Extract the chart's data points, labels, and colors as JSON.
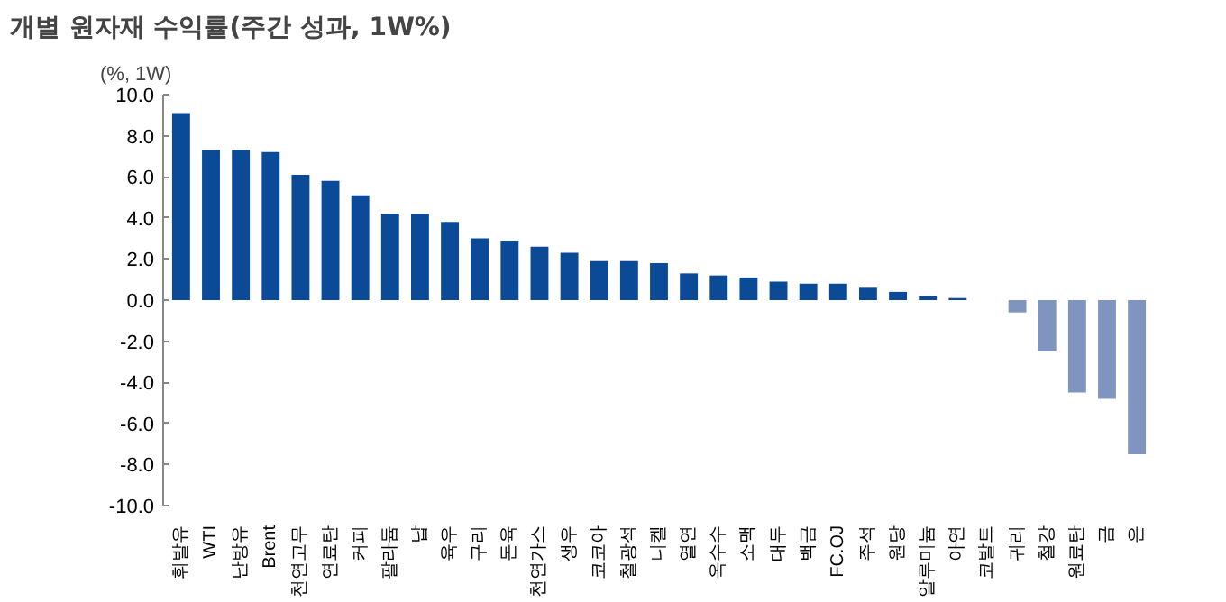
{
  "chart_data": {
    "type": "bar",
    "title": "개별 원자재 수익률(주간 성과, 1W%)",
    "ylabel": "(%, 1W)",
    "categories": [
      "휘발유",
      "WTI",
      "난방유",
      "Brent",
      "천연고무",
      "연료탄",
      "커피",
      "팔라듐",
      "납",
      "육우",
      "구리",
      "돈육",
      "천연가스",
      "생우",
      "코코아",
      "철광석",
      "니켈",
      "열연",
      "옥수수",
      "소맥",
      "대두",
      "백금",
      "FC.OJ",
      "주석",
      "원당",
      "알루미늄",
      "아연",
      "코발트",
      "귀리",
      "철강",
      "원료탄",
      "금",
      "은"
    ],
    "values": [
      9.1,
      7.3,
      7.3,
      7.2,
      6.1,
      5.8,
      5.1,
      4.2,
      4.2,
      3.8,
      3.0,
      2.9,
      2.6,
      2.3,
      1.9,
      1.9,
      1.8,
      1.3,
      1.2,
      1.1,
      0.9,
      0.8,
      0.8,
      0.6,
      0.4,
      0.2,
      0.1,
      0.0,
      -0.6,
      -2.5,
      -4.5,
      -4.8,
      -7.5
    ],
    "colors": [
      "#0b4a97",
      "#0b4a97",
      "#0b4a97",
      "#0b4a97",
      "#0b4a97",
      "#0b4a97",
      "#0b4a97",
      "#0b4a97",
      "#0b4a97",
      "#0b4a97",
      "#0b4a97",
      "#0b4a97",
      "#0b4a97",
      "#0b4a97",
      "#0b4a97",
      "#0b4a97",
      "#0b4a97",
      "#0b4a97",
      "#0b4a97",
      "#0b4a97",
      "#0b4a97",
      "#0b4a97",
      "#0b4a97",
      "#0b4a97",
      "#0b4a97",
      "#0b4a97",
      "#0b4a97",
      "#0b4a97",
      "#7f95c0",
      "#7f95c0",
      "#7f95c0",
      "#7f95c0",
      "#7f95c0"
    ],
    "ylim": [
      -10,
      10
    ],
    "yticks": [
      {
        "value": 10,
        "label": "10.0"
      },
      {
        "value": 8,
        "label": "8.0"
      },
      {
        "value": 6,
        "label": "6.0"
      },
      {
        "value": 4,
        "label": "4.0"
      },
      {
        "value": 2,
        "label": "2.0"
      },
      {
        "value": 0,
        "label": "0.0"
      },
      {
        "value": -2,
        "label": "-2.0"
      },
      {
        "value": -4,
        "label": "-4.0"
      },
      {
        "value": -6,
        "label": "-6.0"
      },
      {
        "value": -8,
        "label": "-8.0"
      },
      {
        "value": -10,
        "label": "-10.0"
      }
    ],
    "grid": false
  }
}
